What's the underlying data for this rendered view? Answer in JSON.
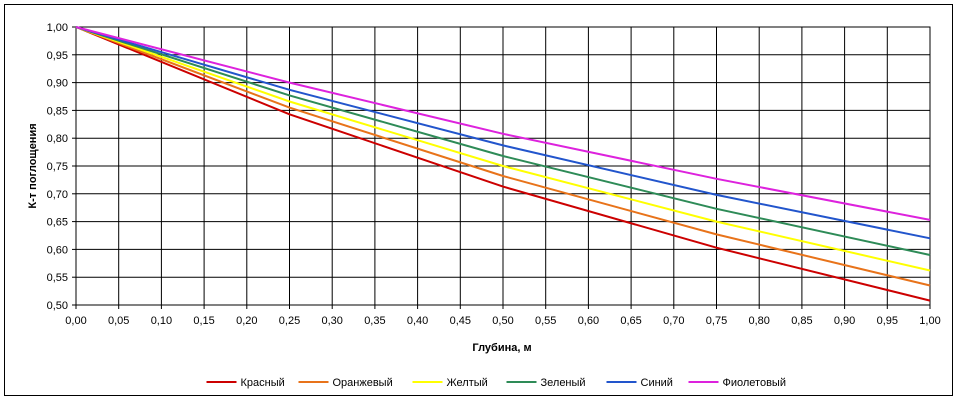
{
  "chart_data": {
    "type": "line",
    "title": "",
    "xlabel": "Глубина, м",
    "ylabel": "К-т поглощения",
    "xlim": [
      0,
      1
    ],
    "ylim": [
      0.5,
      1
    ],
    "x_ticks": [
      "0,00",
      "0,05",
      "0,10",
      "0,15",
      "0,20",
      "0,25",
      "0,30",
      "0,35",
      "0,40",
      "0,45",
      "0,50",
      "0,55",
      "0,60",
      "0,65",
      "0,70",
      "0,75",
      "0,80",
      "0,85",
      "0,90",
      "0,95",
      "1,00"
    ],
    "y_ticks": [
      "0,50",
      "0,55",
      "0,60",
      "0,65",
      "0,70",
      "0,75",
      "0,80",
      "0,85",
      "0,90",
      "0,95",
      "1,00"
    ],
    "grid": true,
    "legend_position": "bottom",
    "x": [
      0,
      0.25,
      0.5,
      0.75,
      1.0
    ],
    "series": [
      {
        "name": "Красный",
        "color": "#cc0000",
        "values": [
          1.0,
          0.843,
          0.713,
          0.603,
          0.508
        ]
      },
      {
        "name": "Оранжевый",
        "color": "#e8731a",
        "values": [
          1.0,
          0.855,
          0.732,
          0.627,
          0.535
        ]
      },
      {
        "name": "Желтый",
        "color": "#ffff00",
        "values": [
          1.0,
          0.866,
          0.75,
          0.65,
          0.562
        ]
      },
      {
        "name": "Зеленый",
        "color": "#2e8b57",
        "values": [
          1.0,
          0.877,
          0.768,
          0.673,
          0.59
        ]
      },
      {
        "name": "Синий",
        "color": "#2255cc",
        "values": [
          1.0,
          0.887,
          0.787,
          0.698,
          0.62
        ]
      },
      {
        "name": "Фиолетовый",
        "color": "#dd22dd",
        "values": [
          1.0,
          0.9,
          0.808,
          0.727,
          0.653
        ]
      }
    ]
  }
}
